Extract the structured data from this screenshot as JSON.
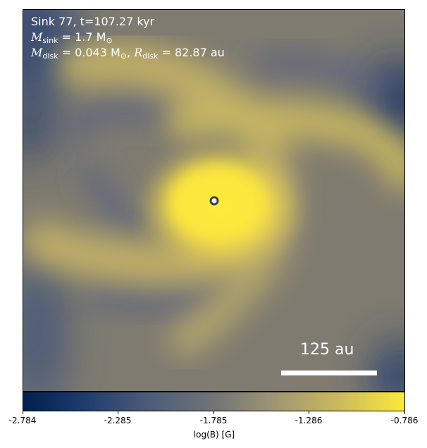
{
  "annotation": {
    "line1": "Sink 77, t=107.27 kyr",
    "msink_symbol": "M",
    "msink_sub": "sink",
    "msink_value": " = 1.7 M",
    "msink_unit_sub": "⊙",
    "mdisk_symbol": "M",
    "mdisk_sub": "disk",
    "mdisk_value": " = 0.043 M",
    "mdisk_unit_sub": "⊙",
    "rdisk_symbol": "R",
    "rdisk_sub": "disk",
    "rdisk_value": " = 82.87 au"
  },
  "scale_bar": {
    "label": "125 au"
  },
  "colorbar": {
    "label": "log(B) [G]",
    "ticks": [
      "-2.784",
      "-2.285",
      "-1.785",
      "-1.286",
      "-0.786"
    ],
    "colormap": "cividis",
    "min": -2.784,
    "max": -0.786
  },
  "colors": {
    "sink_marker": "#4a4a4a",
    "text": "#ffffff"
  }
}
